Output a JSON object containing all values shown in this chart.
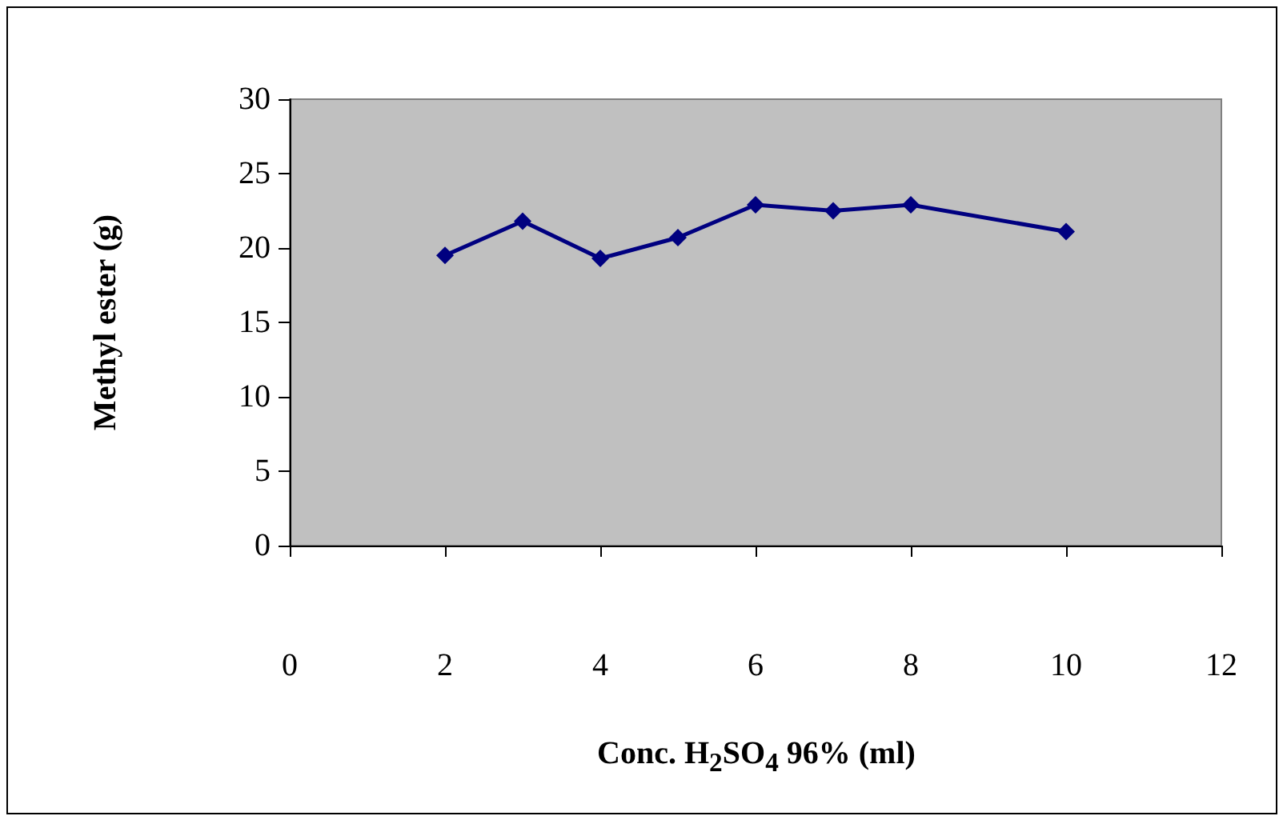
{
  "chart_data": {
    "type": "line",
    "xlabel": "Conc. H$_{2}$SO$_{4}$ 96% (ml)",
    "ylabel": "Methyl ester (g)",
    "x": [
      2,
      3,
      4,
      5,
      6,
      7,
      8,
      10
    ],
    "series": [
      {
        "color": "#000080",
        "values": [
          19.5,
          21.8,
          19.3,
          20.7,
          22.9,
          22.5,
          22.9,
          21.1
        ]
      }
    ],
    "xlim": [
      0,
      12
    ],
    "xticks": [
      0,
      2,
      4,
      6,
      8,
      10,
      12
    ],
    "ylim": [
      0,
      30
    ],
    "yticks": [
      0,
      5,
      10,
      15,
      20,
      25,
      30
    ],
    "grid": false,
    "marker": "diamond",
    "line_style": "solid"
  }
}
